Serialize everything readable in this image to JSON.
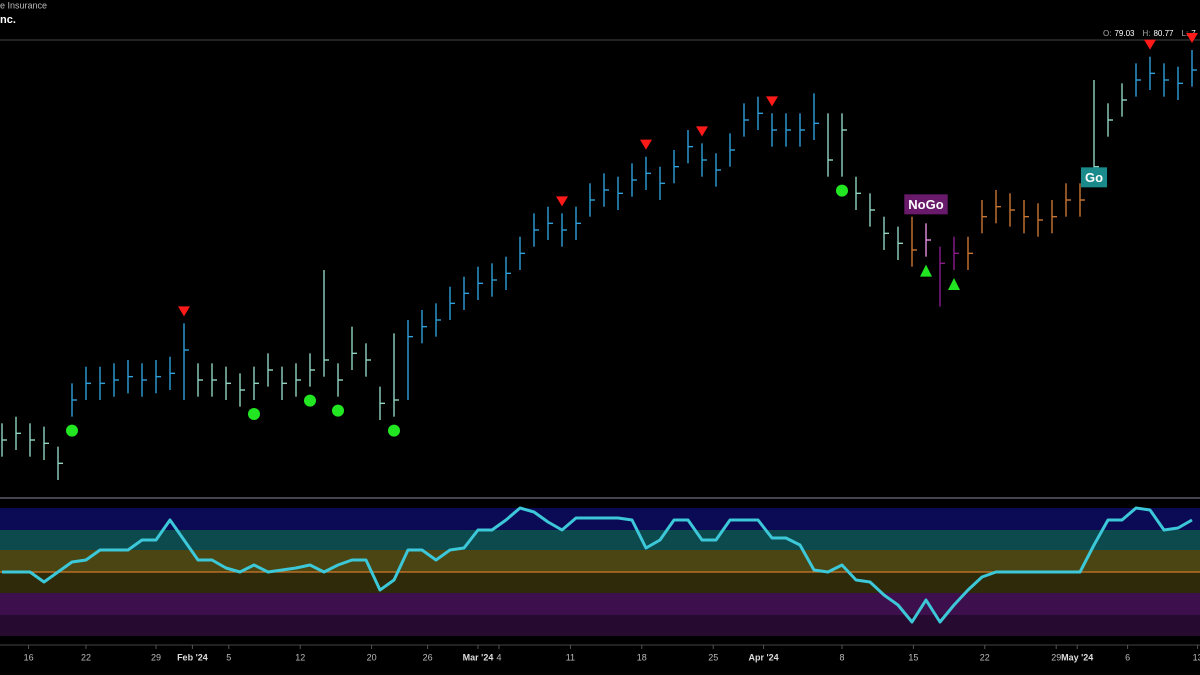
{
  "header": {
    "subtitle": "e Insurance",
    "title": "nc.",
    "ohlc": [
      {
        "key": "O:",
        "value": "79.03"
      },
      {
        "key": "H:",
        "value": "80.77"
      },
      {
        "key": "L:",
        "value": "7"
      }
    ]
  },
  "chart_data": {
    "type": "ohlc",
    "ylim": [
      67.85,
      81.5
    ],
    "close": [
      69.5,
      69.7,
      69.5,
      69.4,
      68.8,
      70.7,
      71.2,
      71.2,
      71.3,
      71.4,
      71.3,
      71.4,
      71.5,
      72.2,
      71.3,
      71.3,
      71.2,
      71.0,
      71.2,
      71.6,
      71.2,
      71.3,
      71.6,
      71.9,
      71.3,
      72.1,
      71.9,
      70.6,
      70.7,
      72.6,
      72.9,
      73.1,
      73.6,
      73.9,
      74.2,
      74.3,
      74.5,
      75.1,
      75.8,
      76.0,
      75.8,
      76.0,
      76.7,
      77.0,
      76.9,
      77.3,
      77.5,
      77.2,
      77.7,
      78.3,
      77.9,
      77.6,
      78.2,
      79.1,
      79.3,
      78.8,
      78.8,
      78.8,
      79.0,
      77.9,
      78.8,
      76.9,
      76.4,
      75.7,
      75.4,
      75.2,
      75.5,
      74.8,
      75.1,
      75.1,
      76.2,
      76.5,
      76.4,
      76.2,
      76.1,
      76.2,
      76.7,
      76.7,
      77.7,
      79.1,
      79.7,
      80.3,
      80.5,
      80.3,
      80.2,
      80.6
    ],
    "high": [
      70,
      70.2,
      70,
      69.9,
      69.3,
      71.2,
      71.7,
      71.7,
      71.8,
      71.9,
      71.8,
      71.9,
      72,
      73,
      71.8,
      71.8,
      71.7,
      71.5,
      71.7,
      72.1,
      71.7,
      71.8,
      72.1,
      74.6,
      71.8,
      72.9,
      72.4,
      71.1,
      72.7,
      73.1,
      73.4,
      73.6,
      74.1,
      74.4,
      74.7,
      74.8,
      75,
      75.6,
      76.3,
      76.5,
      76.3,
      76.5,
      77.2,
      77.5,
      77.4,
      77.8,
      78,
      77.7,
      78.2,
      78.8,
      78.4,
      78.1,
      78.7,
      79.6,
      79.8,
      79.3,
      79.3,
      79.3,
      79.9,
      79.3,
      79.3,
      77.4,
      76.9,
      76.2,
      75.9,
      76.2,
      76,
      75.3,
      75.6,
      75.6,
      76.7,
      77,
      76.9,
      76.7,
      76.6,
      76.7,
      77.2,
      77.2,
      80.3,
      79.6,
      80.2,
      80.8,
      81,
      80.8,
      80.7,
      81.2
    ],
    "low": [
      69,
      69.2,
      69,
      68.9,
      68.3,
      70.2,
      70.7,
      70.7,
      70.8,
      70.9,
      70.8,
      70.9,
      71,
      70.7,
      70.8,
      70.8,
      70.7,
      70.5,
      70.7,
      71.1,
      70.7,
      70.8,
      71.1,
      71.4,
      70.8,
      71.6,
      71.4,
      70.1,
      70.2,
      70.7,
      72.4,
      72.6,
      73.1,
      73.4,
      73.7,
      73.8,
      74,
      74.6,
      75.3,
      75.5,
      75.3,
      75.5,
      76.2,
      76.5,
      76.4,
      76.8,
      77,
      76.7,
      77.2,
      77.8,
      77.4,
      77.1,
      77.7,
      78.6,
      78.8,
      78.3,
      78.3,
      78.3,
      78.5,
      77.4,
      77.4,
      76.4,
      75.9,
      75.2,
      74.9,
      74.7,
      75,
      73.5,
      74.6,
      74.6,
      75.7,
      76,
      75.9,
      75.7,
      75.6,
      75.7,
      76.2,
      76.2,
      77.2,
      78.6,
      79.2,
      79.8,
      80,
      79.8,
      79.7,
      80.1
    ],
    "bar_colors": [
      "#8fd3c1",
      "#8fd3c1",
      "#8fd3c1",
      "#8fd3c1",
      "#8fd3c1",
      "#2e9fd9",
      "#2e9fd9",
      "#2e9fd9",
      "#2e9fd9",
      "#2e9fd9",
      "#2e9fd9",
      "#2e9fd9",
      "#2e9fd9",
      "#2e9fd9",
      "#8fd3c1",
      "#8fd3c1",
      "#8fd3c1",
      "#8fd3c1",
      "#8fd3c1",
      "#8fd3c1",
      "#8fd3c1",
      "#8fd3c1",
      "#8fd3c1",
      "#8fd3c1",
      "#8fd3c1",
      "#8fd3c1",
      "#8fd3c1",
      "#8fd3c1",
      "#8fd3c1",
      "#2e9fd9",
      "#2e9fd9",
      "#2e9fd9",
      "#2e9fd9",
      "#2e9fd9",
      "#2e9fd9",
      "#2e9fd9",
      "#2e9fd9",
      "#2e9fd9",
      "#2e9fd9",
      "#2e9fd9",
      "#2e9fd9",
      "#2e9fd9",
      "#2e9fd9",
      "#2e9fd9",
      "#2e9fd9",
      "#2e9fd9",
      "#2e9fd9",
      "#2e9fd9",
      "#2e9fd9",
      "#2e9fd9",
      "#2e9fd9",
      "#2e9fd9",
      "#2e9fd9",
      "#2e9fd9",
      "#2e9fd9",
      "#2e9fd9",
      "#2e9fd9",
      "#2e9fd9",
      "#2e9fd9",
      "#8fd3c1",
      "#8fd3c1",
      "#8fd3c1",
      "#8fd3c1",
      "#8fd3c1",
      "#8fd3c1",
      "#c87533",
      "#e58fe0",
      "#8b1d8b",
      "#8b1d8b",
      "#c87533",
      "#c87533",
      "#c87533",
      "#c87533",
      "#c87533",
      "#c87533",
      "#c87533",
      "#c87533",
      "#c87533",
      "#8fd3c1",
      "#8fd3c1",
      "#8fd3c1",
      "#2e9fd9",
      "#2e9fd9",
      "#2e9fd9",
      "#2e9fd9",
      "#2e9fd9"
    ],
    "down_triangles": [
      13,
      40,
      46,
      50,
      55,
      82,
      85
    ],
    "dots": [
      5,
      18,
      22,
      24,
      28,
      60
    ],
    "up_triangles": [
      66,
      68
    ],
    "annotations": [
      {
        "text": "NoGo",
        "index": 66,
        "color": "#6a1a6a"
      },
      {
        "text": "Go",
        "index": 78,
        "color": "#1a8a8a"
      }
    ],
    "oscillator": {
      "color": "#3cc8d8",
      "zero_color": "#d07a2a",
      "olim": [
        -6.4,
        6.4
      ],
      "values": [
        0,
        0,
        0,
        -1,
        0,
        1,
        1.2,
        2.2,
        2.2,
        2.2,
        3.2,
        3.2,
        5.2,
        3.2,
        1.2,
        1.2,
        0.4,
        0,
        0.7,
        0,
        0.2,
        0.4,
        0.7,
        0,
        0.7,
        1.2,
        1.2,
        -1.8,
        -0.8,
        2.2,
        2.2,
        1.2,
        2.2,
        2.4,
        4.2,
        4.2,
        5.2,
        6.4,
        6,
        5,
        4.2,
        5.4,
        5.4,
        5.4,
        5.4,
        5.2,
        2.4,
        3.2,
        5.2,
        5.2,
        3.2,
        3.2,
        5.2,
        5.2,
        5.2,
        3.4,
        3.4,
        2.7,
        0.2,
        0,
        0.7,
        -0.8,
        -1,
        -2.3,
        -3.3,
        -5,
        -2.8,
        -5,
        -3.3,
        -1.8,
        -0.5,
        0,
        0,
        0,
        0,
        0,
        0,
        0,
        2.7,
        5.2,
        5.2,
        6.4,
        6.2,
        4.2,
        4.4,
        5.2
      ]
    },
    "xticks": [
      {
        "value": 1.9,
        "label": "16"
      },
      {
        "value": 6,
        "label": "22"
      },
      {
        "value": 11,
        "label": "29"
      },
      {
        "value": 13.6,
        "label": "Feb '24"
      },
      {
        "value": 16.2,
        "label": "5"
      },
      {
        "value": 21.3,
        "label": "12"
      },
      {
        "value": 26.4,
        "label": "20"
      },
      {
        "value": 30.4,
        "label": "26"
      },
      {
        "value": 34,
        "label": "Mar '24"
      },
      {
        "value": 35.5,
        "label": "4"
      },
      {
        "value": 40.6,
        "label": "11"
      },
      {
        "value": 45.7,
        "label": "18"
      },
      {
        "value": 50.8,
        "label": "25"
      },
      {
        "value": 54.4,
        "label": "Apr '24"
      },
      {
        "value": 60,
        "label": "8"
      },
      {
        "value": 65.1,
        "label": "15"
      },
      {
        "value": 70.2,
        "label": "22"
      },
      {
        "value": 75.3,
        "label": "29"
      },
      {
        "value": 76.8,
        "label": "May '24"
      },
      {
        "value": 80.4,
        "label": "6"
      },
      {
        "value": 85.4,
        "label": "13"
      }
    ]
  }
}
